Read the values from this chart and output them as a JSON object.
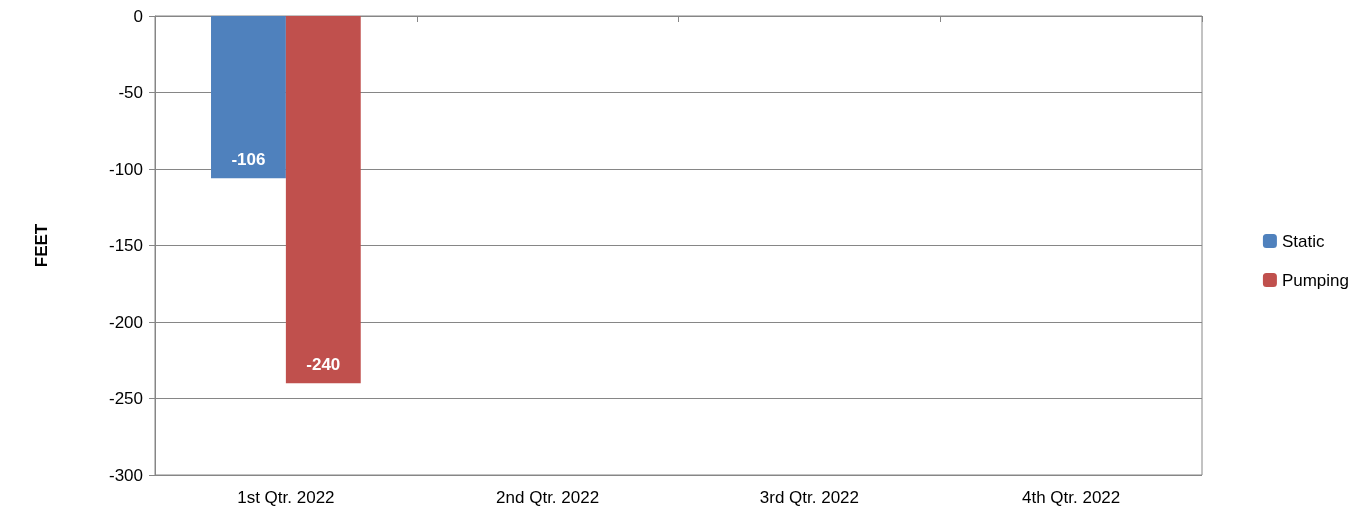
{
  "chart_data": {
    "type": "bar",
    "ylabel": "FEET",
    "categories": [
      "1st Qtr. 2022",
      "2nd Qtr. 2022",
      "3rd Qtr. 2022",
      "4th Qtr. 2022"
    ],
    "series": [
      {
        "name": "Static",
        "color": "#4f81bd",
        "values": [
          -106,
          null,
          null,
          null
        ]
      },
      {
        "name": "Pumping",
        "color": "#c0504d",
        "values": [
          -240,
          null,
          null,
          null
        ]
      }
    ],
    "ylim": [
      -300,
      0
    ],
    "yticks": [
      -300,
      -250,
      -200,
      -150,
      -100,
      -50,
      0
    ],
    "grid": "y",
    "legend": "right",
    "data_labels": true
  }
}
